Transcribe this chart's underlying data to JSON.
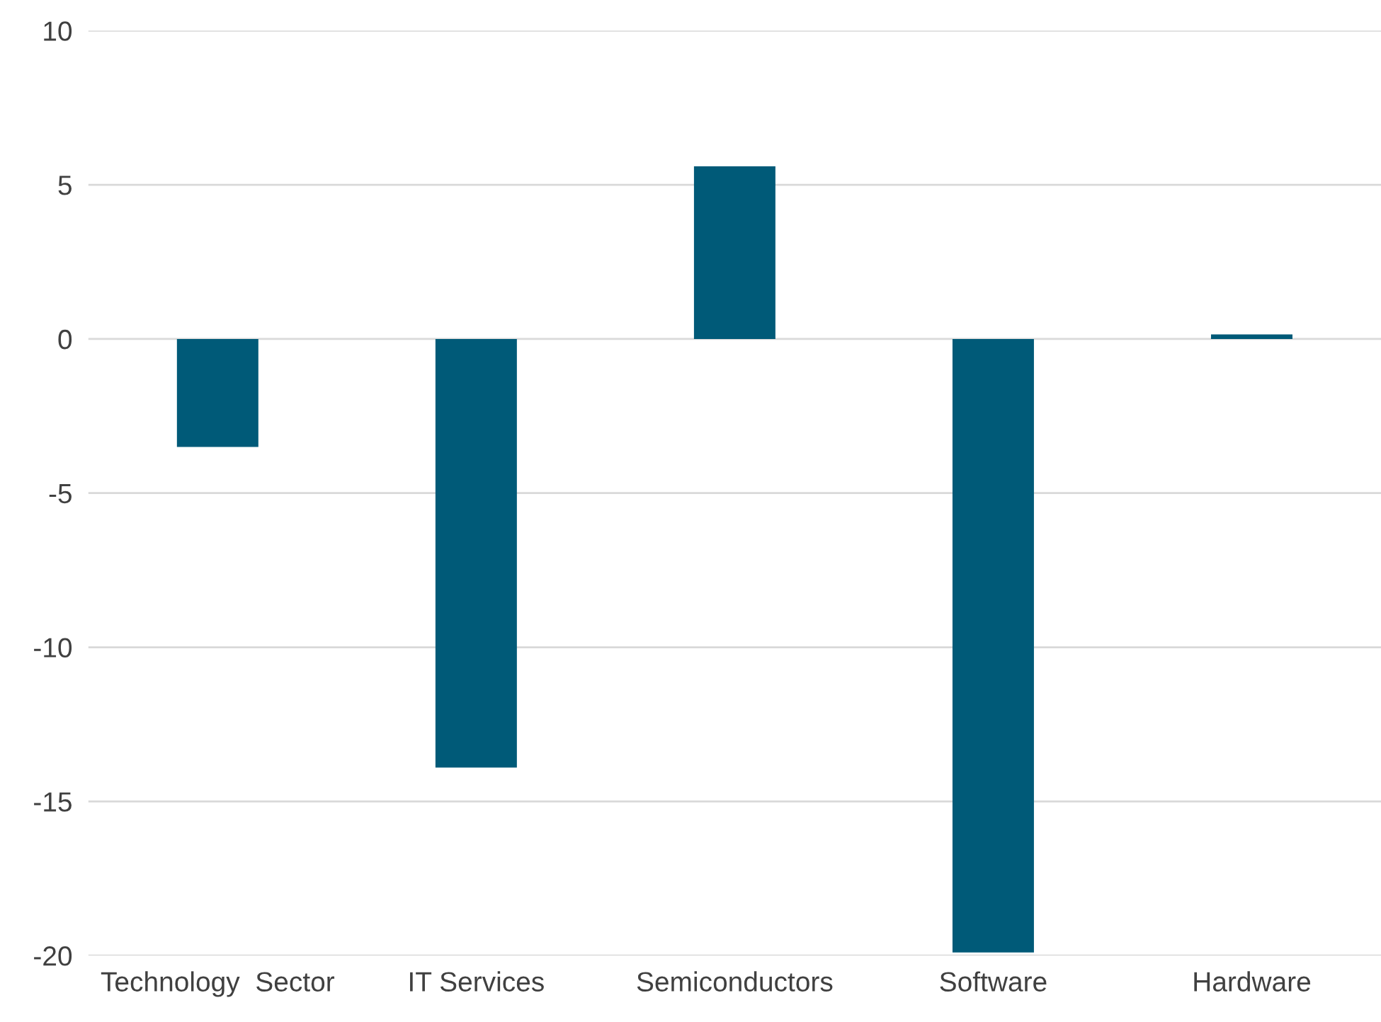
{
  "chart_data": {
    "type": "bar",
    "categories": [
      "Technology  Sector",
      "IT Services",
      "Semiconductors",
      "Software",
      "Hardware"
    ],
    "values": [
      -3.5,
      -13.9,
      5.6,
      -19.9,
      0.15
    ],
    "color": "#005a78",
    "ylim": [
      -20,
      10
    ],
    "yticks": [
      -20,
      -15,
      -10,
      -5,
      0,
      5,
      10
    ],
    "grid": "y",
    "legend": false
  }
}
